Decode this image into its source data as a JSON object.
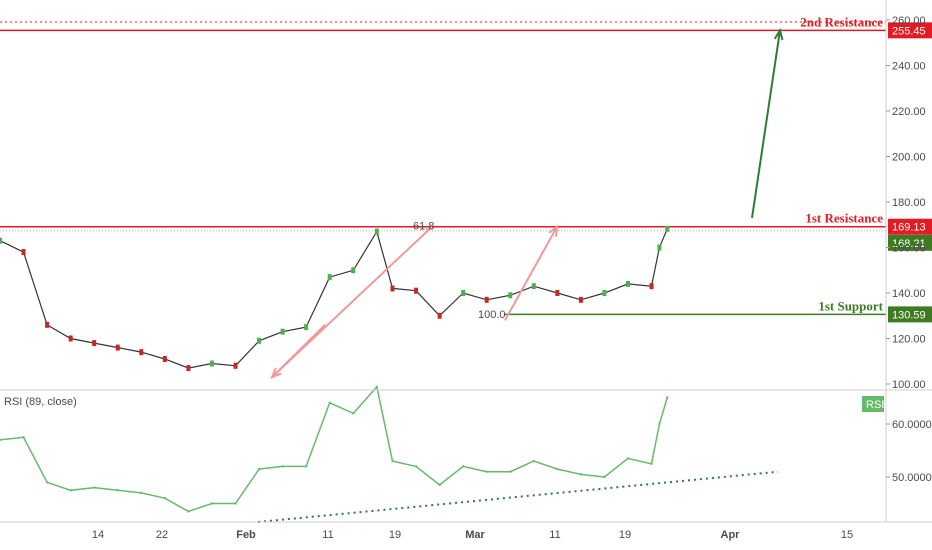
{
  "chart_data": [
    {
      "type": "line",
      "title": "",
      "xlabel": "",
      "ylabel": "",
      "ylim": [
        100,
        260
      ],
      "y_ticks": [
        "100.00",
        "120.00",
        "140.00",
        "160.00",
        "180.00",
        "200.00",
        "220.00",
        "240.00",
        "260.00"
      ],
      "x_ticks": [
        "14",
        "22",
        "Feb",
        "11",
        "19",
        "Mar",
        "11",
        "19",
        "Apr",
        "15"
      ],
      "grid": false,
      "series": [
        {
          "x": [
            "Jan 7",
            "Jan 10",
            "Jan 13",
            "Jan 16",
            "Jan 19",
            "Jan 22",
            "Jan 25",
            "Jan 28",
            "Jan 31",
            "Feb 3",
            "Feb 6",
            "Feb 9",
            "Feb 12",
            "Feb 15",
            "Feb 18",
            "Feb 21",
            "Feb 24",
            "Feb 26",
            "Mar 1",
            "Mar 4",
            "Mar 7",
            "Mar 10",
            "Mar 13",
            "Mar 16",
            "Mar 19",
            "Mar 22",
            "Mar 25",
            "Mar 28",
            "Mar 31",
            "Apr 1",
            "Apr 2"
          ],
          "values": [
            163,
            158,
            126,
            120,
            118,
            116,
            114,
            111,
            107,
            109,
            108,
            119,
            123,
            125,
            147,
            150,
            167,
            142,
            141,
            130,
            140,
            137,
            139,
            143,
            140,
            137,
            140,
            144,
            143,
            160,
            168.21
          ]
        }
      ],
      "levels": [
        {
          "label": "2nd Resistance",
          "value": 255.45,
          "badge": "255.45",
          "color": "#e31b23"
        },
        {
          "label": "1st Resistance",
          "value": 169.13,
          "badge": "169.13",
          "color": "#e31b23"
        },
        {
          "label": "1st Support",
          "value": 130.59,
          "badge": "130.59",
          "color": "#3d7a22"
        }
      ],
      "last_price": "168.21",
      "fib_labels": [
        "61.8",
        "100.0"
      ],
      "colors": {
        "up": "#4caf50",
        "down": "#c62828",
        "resistance": "#e31b23",
        "support": "#3d7a22",
        "projection": "#ef9a9a",
        "target_arrow": "#2e7d32"
      }
    },
    {
      "type": "line",
      "title": "RSI (89, close)",
      "ylim": [
        40,
        68
      ],
      "y_ticks": [
        "50.0000",
        "60.0000"
      ],
      "badge": "RSI",
      "grid": false,
      "series": [
        {
          "x": [
            "Jan 7",
            "Jan 10",
            "Jan 13",
            "Jan 16",
            "Jan 19",
            "Jan 22",
            "Jan 25",
            "Jan 28",
            "Jan 31",
            "Feb 3",
            "Feb 6",
            "Feb 9",
            "Feb 12",
            "Feb 15",
            "Feb 18",
            "Feb 21",
            "Feb 24",
            "Feb 26",
            "Mar 1",
            "Mar 4",
            "Mar 7",
            "Mar 10",
            "Mar 13",
            "Mar 16",
            "Mar 19",
            "Mar 22",
            "Mar 25",
            "Mar 28",
            "Mar 31",
            "Apr 1",
            "Apr 2"
          ],
          "values": [
            57,
            57.5,
            49,
            47.5,
            48,
            47.5,
            47,
            46,
            43.5,
            45,
            45,
            51.5,
            52,
            52,
            64,
            62,
            67,
            53,
            52,
            48.5,
            52,
            51,
            51,
            53,
            51.5,
            50.5,
            50,
            53.5,
            52.5,
            60,
            65
          ]
        }
      ],
      "trendline": {
        "style": "dotted",
        "color": "#2e7d32"
      },
      "colors": {
        "line": "#66bb6a"
      }
    }
  ]
}
